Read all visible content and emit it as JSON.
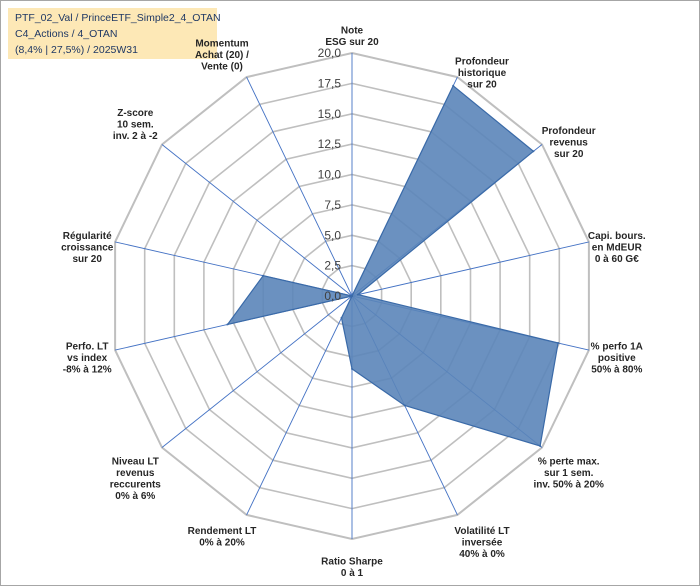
{
  "title_lines": [
    "PTF_02_Val / PrinceETF_Simple2_4_OTAN",
    "C4_Actions / 4_OTAN",
    "(8,4% | 27,5%) / 2025W31"
  ],
  "colors": {
    "fill": "#5b85b9",
    "stroke": "#3a6aa8",
    "grid": "#bfbfbf",
    "spoke": "#4472c4",
    "title_bg": "#fde8b6"
  },
  "chart_data": {
    "type": "radar",
    "title": "PTF_02_Val / PrinceETF_Simple2_4_OTAN C4_Actions / 4_OTAN (8,4% | 27,5%) / 2025W31",
    "rlim": [
      0,
      20
    ],
    "grid": true,
    "ticks": [
      "0,0",
      "2,5",
      "5,0",
      "7,5",
      "10,0",
      "12,5",
      "15,0",
      "17,5",
      "20,0"
    ],
    "axes": [
      [
        "Note",
        "ESG sur 20"
      ],
      [
        "Profondeur",
        "historique",
        "sur 20"
      ],
      [
        "Profondeur",
        "revenus",
        "sur 20"
      ],
      [
        "Capi. bours.",
        "en MdEUR",
        "0 à 60 G€"
      ],
      [
        "% perfo 1A",
        "positive",
        "50% à 80%"
      ],
      [
        "% perte max.",
        "sur 1 sem.",
        "inv. 50% à 20%"
      ],
      [
        "Volatilité LT",
        "inversée",
        "40% à 0%"
      ],
      [
        "Ratio Sharpe",
        "0 à 1"
      ],
      [
        "Rendement LT",
        "0% à 20%"
      ],
      [
        "Niveau LT",
        "revenus",
        "reccurents",
        "0% à 6%"
      ],
      [
        "Perfo. LT",
        "vs index",
        "-8% à 12%"
      ],
      [
        "Régularité",
        "croissance",
        "sur 20"
      ],
      [
        "Z-score",
        "10 sem.",
        "inv. 2 à -2"
      ],
      [
        "Momentum",
        "Achat (20) /",
        "Vente (0)"
      ]
    ],
    "values": [
      0,
      19.2,
      19.1,
      0.5,
      17.4,
      19.8,
      10.0,
      6.0,
      2.0,
      0,
      10.5,
      7.5,
      0,
      0
    ]
  }
}
